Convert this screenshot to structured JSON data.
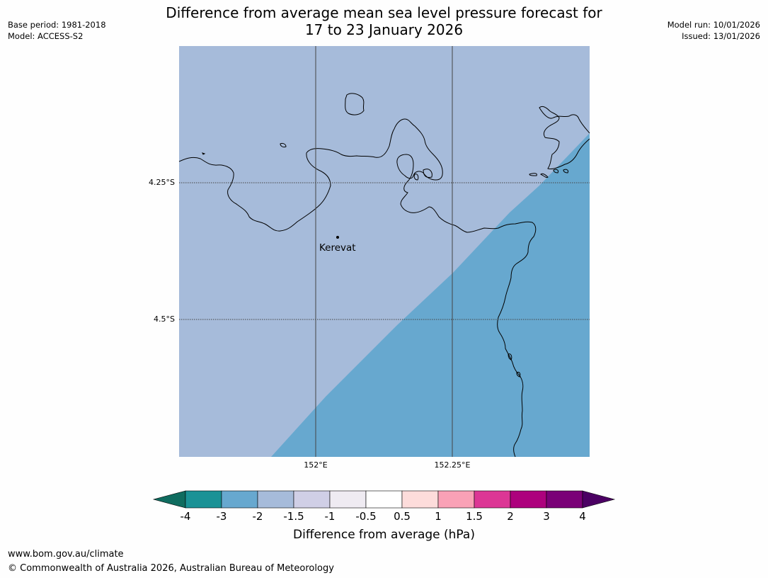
{
  "header": {
    "title_line1": "Difference from average mean sea level pressure forecast for",
    "title_line2": "17 to 23 January 2026",
    "base_period": "Base period: 1981-2018",
    "model": "Model: ACCESS-S2",
    "model_run": "Model run: 10/01/2026",
    "issued": "Issued: 13/01/2026"
  },
  "map": {
    "colors": {
      "background": "#a6bbda",
      "shaded": "#67a8cf",
      "coast": "#000000",
      "grid": "#444444"
    },
    "lon_ticks": [
      "152°E",
      "152.25°E"
    ],
    "lat_ticks": [
      "4.25°S",
      "4.5°S"
    ],
    "places": [
      {
        "name": "Kerevat"
      }
    ]
  },
  "colorbar": {
    "title": "Difference from average (hPa)",
    "ticks": [
      "-4",
      "-3",
      "-2",
      "-1.5",
      "-1",
      "-0.5",
      "0.5",
      "1",
      "1.5",
      "2",
      "3",
      "4"
    ],
    "colors": [
      "#1a9296",
      "#67a8cf",
      "#a6bbda",
      "#d0cfe6",
      "#efebf2",
      "#ffffff",
      "#fddcdb",
      "#f9a1b6",
      "#dc3695",
      "#ad017d",
      "#7a0177"
    ],
    "under_color": "#0f6c5f",
    "over_color": "#4b0063"
  },
  "footer": {
    "url": "www.bom.gov.au/climate",
    "copyright": "© Commonwealth of Australia 2026, Australian Bureau of Meteorology"
  }
}
